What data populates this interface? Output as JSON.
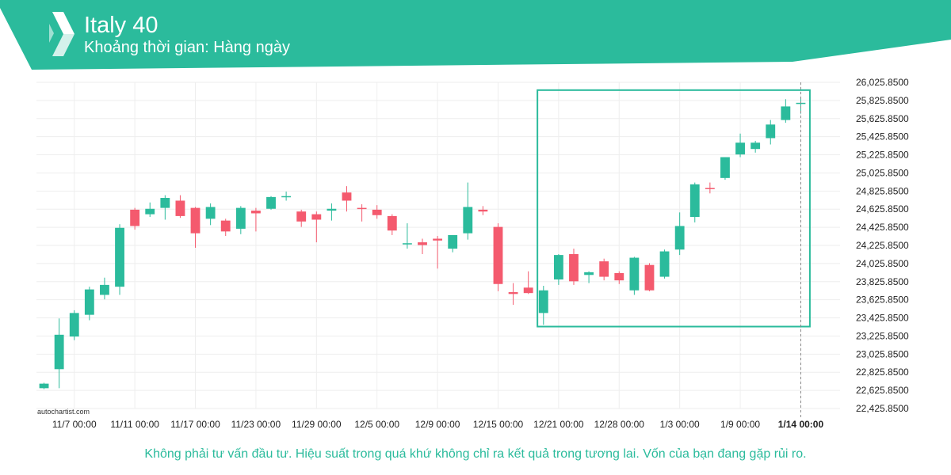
{
  "header": {
    "title": "Italy 40",
    "subtitle": "Khoảng thời gian: Hàng ngày",
    "logo": "autochartist-logo-icon"
  },
  "footer": {
    "disclaimer": "Không phải tư vấn đầu tư. Hiệu suất trong quá khứ không chỉ ra kết quả trong tương lai. Vốn của bạn đang gặp rủi ro.",
    "watermark": "autochartist.com"
  },
  "colors": {
    "brand": "#2bbb9c",
    "bullish": "#2bbb9c",
    "bearish": "#f45a6e",
    "grid": "#eeeeee",
    "axis_text": "#222222"
  },
  "chart_data": {
    "type": "candlestick",
    "title": "Italy 40",
    "subtitle": "Khoảng thời gian: Hàng ngày",
    "y_ticks": [
      "26,025.8500",
      "25,825.8500",
      "25,625.8500",
      "25,425.8500",
      "25,225.8500",
      "25,025.8500",
      "24,825.8500",
      "24,625.8500",
      "24,425.8500",
      "24,225.8500",
      "24,025.8500",
      "23,825.8500",
      "23,625.8500",
      "23,425.8500",
      "23,225.8500",
      "23,025.8500",
      "22,825.8500",
      "22,625.8500",
      "22,425.8500"
    ],
    "ylim": [
      22425.85,
      26025.85
    ],
    "x_ticks": [
      {
        "label": "11/7 00:00",
        "index": 2
      },
      {
        "label": "11/11 00:00",
        "index": 6
      },
      {
        "label": "11/17 00:00",
        "index": 10
      },
      {
        "label": "11/23 00:00",
        "index": 14
      },
      {
        "label": "11/29 00:00",
        "index": 18
      },
      {
        "label": "12/5 00:00",
        "index": 22
      },
      {
        "label": "12/9 00:00",
        "index": 26
      },
      {
        "label": "12/15 00:00",
        "index": 30
      },
      {
        "label": "12/21 00:00",
        "index": 34
      },
      {
        "label": "12/28 00:00",
        "index": 38
      },
      {
        "label": "1/3 00:00",
        "index": 42
      },
      {
        "label": "1/9 00:00",
        "index": 46
      },
      {
        "label": "1/14 00:00",
        "index": 50,
        "bold": true
      }
    ],
    "candles": [
      {
        "o": 22650,
        "h": 22710,
        "l": 22640,
        "c": 22700
      },
      {
        "o": 22860,
        "h": 23420,
        "l": 22650,
        "c": 23240
      },
      {
        "o": 23220,
        "h": 23510,
        "l": 23180,
        "c": 23480
      },
      {
        "o": 23460,
        "h": 23770,
        "l": 23400,
        "c": 23740
      },
      {
        "o": 23680,
        "h": 23870,
        "l": 23630,
        "c": 23790
      },
      {
        "o": 23770,
        "h": 24460,
        "l": 23680,
        "c": 24420
      },
      {
        "o": 24620,
        "h": 24640,
        "l": 24400,
        "c": 24440
      },
      {
        "o": 24570,
        "h": 24700,
        "l": 24540,
        "c": 24630
      },
      {
        "o": 24640,
        "h": 24780,
        "l": 24510,
        "c": 24750
      },
      {
        "o": 24720,
        "h": 24780,
        "l": 24530,
        "c": 24550
      },
      {
        "o": 24640,
        "h": 24650,
        "l": 24200,
        "c": 24360
      },
      {
        "o": 24520,
        "h": 24690,
        "l": 24450,
        "c": 24650
      },
      {
        "o": 24500,
        "h": 24520,
        "l": 24330,
        "c": 24380
      },
      {
        "o": 24410,
        "h": 24660,
        "l": 24350,
        "c": 24640
      },
      {
        "o": 24610,
        "h": 24640,
        "l": 24380,
        "c": 24580
      },
      {
        "o": 24630,
        "h": 24770,
        "l": 24620,
        "c": 24760
      },
      {
        "o": 24770,
        "h": 24820,
        "l": 24720,
        "c": 24770
      },
      {
        "o": 24600,
        "h": 24620,
        "l": 24430,
        "c": 24490
      },
      {
        "o": 24570,
        "h": 24600,
        "l": 24260,
        "c": 24510
      },
      {
        "o": 24610,
        "h": 24690,
        "l": 24500,
        "c": 24630
      },
      {
        "o": 24810,
        "h": 24880,
        "l": 24600,
        "c": 24720
      },
      {
        "o": 24640,
        "h": 24680,
        "l": 24490,
        "c": 24630
      },
      {
        "o": 24620,
        "h": 24670,
        "l": 24520,
        "c": 24560
      },
      {
        "o": 24550,
        "h": 24570,
        "l": 24340,
        "c": 24390
      },
      {
        "o": 24240,
        "h": 24470,
        "l": 24190,
        "c": 24250
      },
      {
        "o": 24260,
        "h": 24300,
        "l": 24130,
        "c": 24230
      },
      {
        "o": 24300,
        "h": 24330,
        "l": 23970,
        "c": 24280
      },
      {
        "o": 24190,
        "h": 24340,
        "l": 24150,
        "c": 24340
      },
      {
        "o": 24360,
        "h": 24920,
        "l": 24290,
        "c": 24650
      },
      {
        "o": 24620,
        "h": 24660,
        "l": 24560,
        "c": 24600
      },
      {
        "o": 24430,
        "h": 24470,
        "l": 23720,
        "c": 23800
      },
      {
        "o": 23710,
        "h": 23810,
        "l": 23570,
        "c": 23690
      },
      {
        "o": 23760,
        "h": 23940,
        "l": 23690,
        "c": 23700
      },
      {
        "o": 23480,
        "h": 23780,
        "l": 23350,
        "c": 23730
      },
      {
        "o": 23850,
        "h": 24130,
        "l": 23790,
        "c": 24120
      },
      {
        "o": 24130,
        "h": 24190,
        "l": 23790,
        "c": 23830
      },
      {
        "o": 23900,
        "h": 23940,
        "l": 23810,
        "c": 23930
      },
      {
        "o": 24050,
        "h": 24080,
        "l": 23840,
        "c": 23880
      },
      {
        "o": 23920,
        "h": 23940,
        "l": 23800,
        "c": 23840
      },
      {
        "o": 23730,
        "h": 24100,
        "l": 23680,
        "c": 24090
      },
      {
        "o": 24010,
        "h": 24030,
        "l": 23720,
        "c": 23730
      },
      {
        "o": 23880,
        "h": 24180,
        "l": 23860,
        "c": 24160
      },
      {
        "o": 24180,
        "h": 24590,
        "l": 24120,
        "c": 24440
      },
      {
        "o": 24540,
        "h": 24920,
        "l": 24480,
        "c": 24900
      },
      {
        "o": 24860,
        "h": 24920,
        "l": 24800,
        "c": 24850
      },
      {
        "o": 24970,
        "h": 25200,
        "l": 24950,
        "c": 25200
      },
      {
        "o": 25230,
        "h": 25460,
        "l": 25200,
        "c": 25360
      },
      {
        "o": 25290,
        "h": 25380,
        "l": 25250,
        "c": 25360
      },
      {
        "o": 25410,
        "h": 25610,
        "l": 25340,
        "c": 25560
      },
      {
        "o": 25610,
        "h": 25840,
        "l": 25580,
        "c": 25760
      },
      {
        "o": 25800,
        "h": 25860,
        "l": 25680,
        "c": 25800
      }
    ],
    "pattern_box": {
      "start_index": 33,
      "end_index": 50,
      "y_top": 25940,
      "y_bottom": 23330
    }
  }
}
